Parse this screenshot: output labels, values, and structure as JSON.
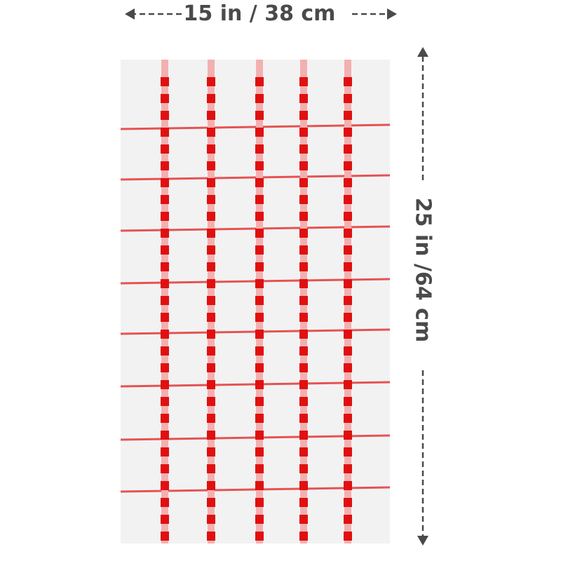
{
  "dimensions": {
    "width_label": "15 in / 38 cm",
    "height_label": "25 in /64 cm"
  },
  "product": {
    "pattern": "windowpane check",
    "colors": {
      "base": "#f2f2f2",
      "stripe": "#e01010",
      "label": "#4a4a4a"
    }
  }
}
